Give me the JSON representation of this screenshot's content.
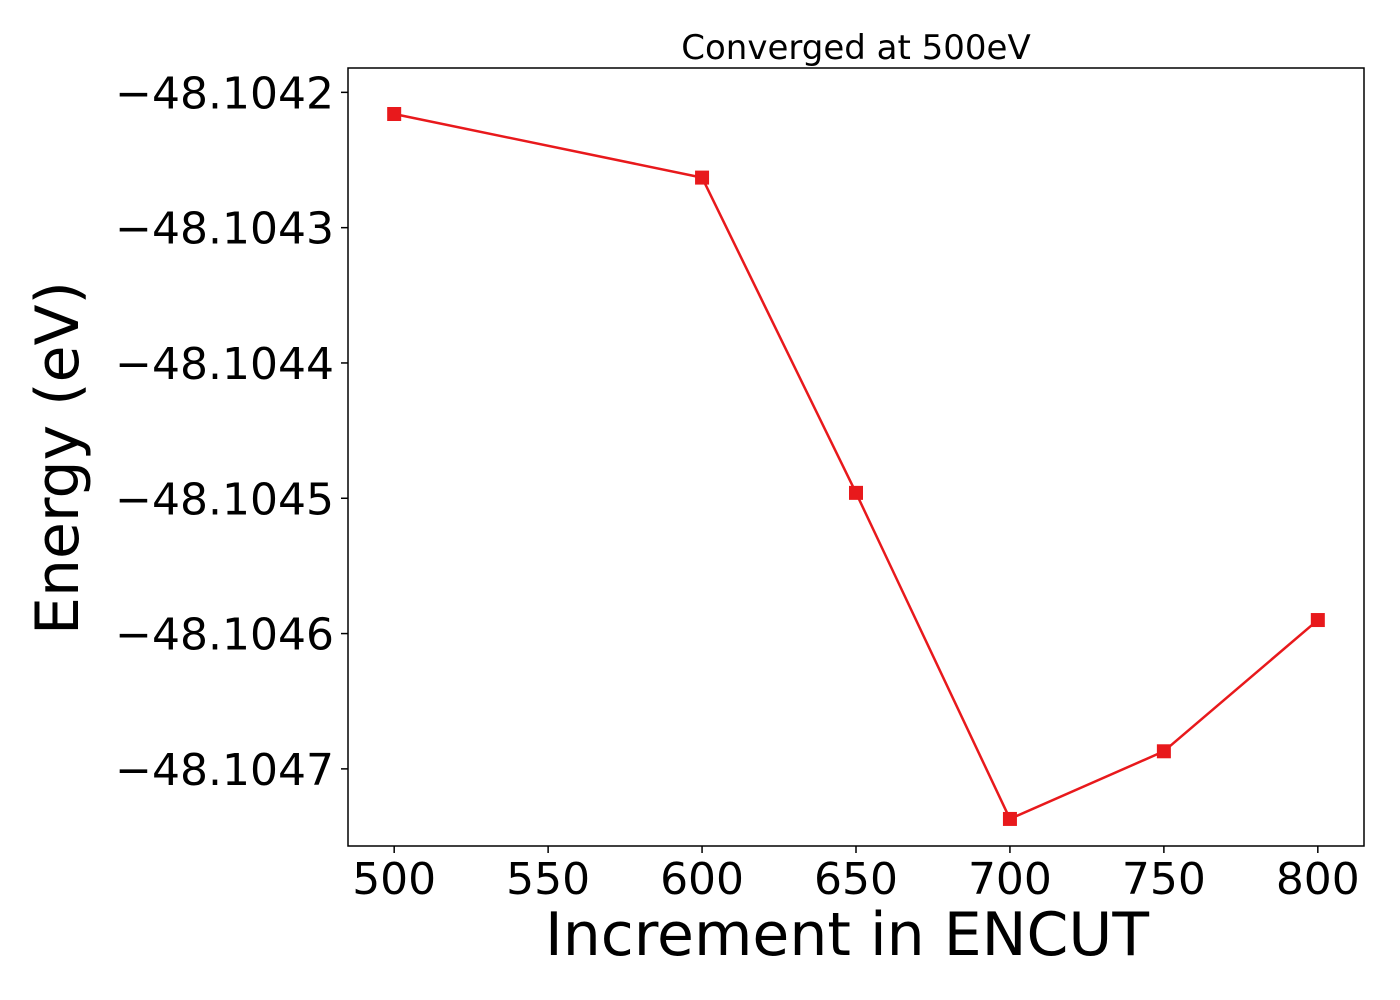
{
  "chart_data": {
    "type": "line",
    "title": "Converged at 500eV",
    "xlabel": "Increment in ENCUT",
    "ylabel": "Energy (eV)",
    "x": [
      500,
      600,
      650,
      700,
      750,
      800
    ],
    "series": [
      {
        "values": [
          -48.104216,
          -48.104263,
          -48.104496,
          -48.104737,
          -48.104687,
          -48.10459
        ],
        "color": "#e8191c",
        "marker": "square"
      }
    ],
    "xlim": [
      485,
      815
    ],
    "ylim": [
      -48.104757,
      -48.104182
    ],
    "xticks": [
      500,
      550,
      600,
      650,
      700,
      750,
      800
    ],
    "xtick_labels": [
      "500",
      "550",
      "600",
      "650",
      "700",
      "750",
      "800"
    ],
    "yticks": [
      -48.1042,
      -48.1043,
      -48.1044,
      -48.1045,
      -48.1046,
      -48.1047
    ],
    "ytick_labels": [
      "−48.1042",
      "−48.1043",
      "−48.1044",
      "−48.1045",
      "−48.1046",
      "−48.1047"
    ],
    "grid": false,
    "legend": "none"
  }
}
